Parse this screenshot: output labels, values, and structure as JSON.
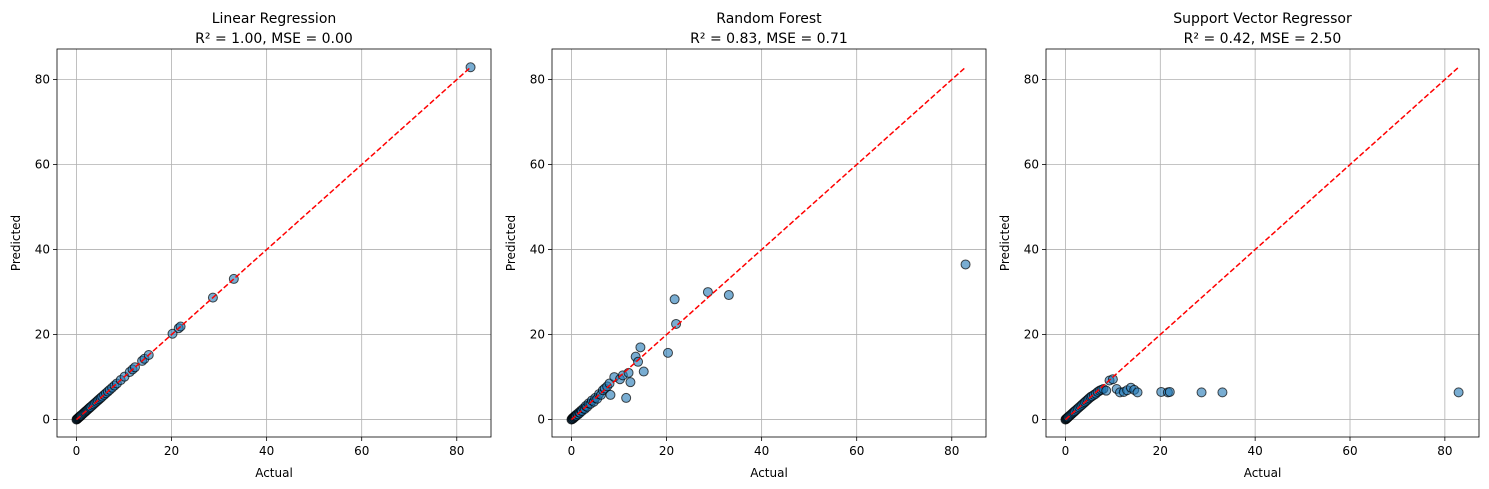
{
  "chart_data": [
    {
      "type": "scatter",
      "title_line1": "Linear Regression",
      "title_line2": "R² = 1.00, MSE = 0.00",
      "xlabel": "Actual",
      "ylabel": "Predicted",
      "xlim": [
        -4.1,
        87.2
      ],
      "ylim": [
        -4.1,
        87.2
      ],
      "xticks": [
        0,
        20,
        40,
        60,
        80
      ],
      "yticks": [
        0,
        20,
        40,
        60,
        80
      ],
      "grid": true,
      "reference_line": [
        [
          0,
          0
        ],
        [
          82.8,
          82.8
        ]
      ],
      "points": [
        [
          0,
          0
        ],
        [
          0.1,
          0.1
        ],
        [
          0.2,
          0.2
        ],
        [
          0.3,
          0.3
        ],
        [
          0.4,
          0.4
        ],
        [
          0.5,
          0.5
        ],
        [
          0.6,
          0.6
        ],
        [
          0.7,
          0.7
        ],
        [
          0.8,
          0.8
        ],
        [
          0.9,
          0.9
        ],
        [
          1.0,
          1.0
        ],
        [
          1.2,
          1.2
        ],
        [
          1.4,
          1.4
        ],
        [
          1.6,
          1.6
        ],
        [
          1.8,
          1.8
        ],
        [
          2.0,
          2.0
        ],
        [
          2.2,
          2.2
        ],
        [
          2.4,
          2.4
        ],
        [
          2.6,
          2.6
        ],
        [
          2.8,
          2.8
        ],
        [
          3.0,
          3.0
        ],
        [
          3.3,
          3.3
        ],
        [
          3.6,
          3.6
        ],
        [
          3.9,
          3.9
        ],
        [
          4.2,
          4.2
        ],
        [
          4.5,
          4.5
        ],
        [
          4.8,
          4.8
        ],
        [
          5.1,
          5.1
        ],
        [
          5.4,
          5.4
        ],
        [
          5.8,
          5.8
        ],
        [
          6.2,
          6.2
        ],
        [
          6.6,
          6.6
        ],
        [
          7.0,
          7.0
        ],
        [
          7.5,
          7.5
        ],
        [
          8.0,
          8.0
        ],
        [
          8.5,
          8.5
        ],
        [
          9.3,
          9.3
        ],
        [
          10.1,
          10.1
        ],
        [
          11.2,
          11.2
        ],
        [
          11.8,
          11.8
        ],
        [
          12.3,
          12.3
        ],
        [
          13.8,
          13.8
        ],
        [
          14.3,
          14.3
        ],
        [
          15.2,
          15.2
        ],
        [
          20.2,
          20.2
        ],
        [
          21.5,
          21.5
        ],
        [
          21.9,
          21.9
        ],
        [
          28.7,
          28.7
        ],
        [
          33.1,
          33.1
        ],
        [
          82.9,
          82.9
        ]
      ]
    },
    {
      "type": "scatter",
      "title_line1": "Random Forest",
      "title_line2": "R² = 0.83, MSE = 0.71",
      "xlabel": "Actual",
      "ylabel": "Predicted",
      "xlim": [
        -4.1,
        87.2
      ],
      "ylim": [
        -4.1,
        87.2
      ],
      "xticks": [
        0,
        20,
        40,
        60,
        80
      ],
      "yticks": [
        0,
        20,
        40,
        60,
        80
      ],
      "grid": true,
      "reference_line": [
        [
          0,
          0
        ],
        [
          82.8,
          82.8
        ]
      ],
      "points": [
        [
          0,
          0
        ],
        [
          0.1,
          0.1
        ],
        [
          0.2,
          0.3
        ],
        [
          0.3,
          0.2
        ],
        [
          0.4,
          0.5
        ],
        [
          0.5,
          0.4
        ],
        [
          0.6,
          0.6
        ],
        [
          0.7,
          0.8
        ],
        [
          0.8,
          0.7
        ],
        [
          0.9,
          1.0
        ],
        [
          1.0,
          0.9
        ],
        [
          1.2,
          1.3
        ],
        [
          1.4,
          1.2
        ],
        [
          1.6,
          1.7
        ],
        [
          1.8,
          1.6
        ],
        [
          2.0,
          2.1
        ],
        [
          2.2,
          2.0
        ],
        [
          2.5,
          2.6
        ],
        [
          2.8,
          2.5
        ],
        [
          3.0,
          3.2
        ],
        [
          3.3,
          3.0
        ],
        [
          3.6,
          3.8
        ],
        [
          4.0,
          3.7
        ],
        [
          4.3,
          4.5
        ],
        [
          4.7,
          4.2
        ],
        [
          5.0,
          5.1
        ],
        [
          5.4,
          4.9
        ],
        [
          5.8,
          6.0
        ],
        [
          6.2,
          5.8
        ],
        [
          6.6,
          6.9
        ],
        [
          7.0,
          7.3
        ],
        [
          7.5,
          7.8
        ],
        [
          8.0,
          8.5
        ],
        [
          8.2,
          5.8
        ],
        [
          9.0,
          10.0
        ],
        [
          10.2,
          9.5
        ],
        [
          10.8,
          10.4
        ],
        [
          11.5,
          5.1
        ],
        [
          12.0,
          11.0
        ],
        [
          12.4,
          8.8
        ],
        [
          13.5,
          14.8
        ],
        [
          14.0,
          13.6
        ],
        [
          14.5,
          17.0
        ],
        [
          15.2,
          11.3
        ],
        [
          20.3,
          15.7
        ],
        [
          21.7,
          28.3
        ],
        [
          22.0,
          22.5
        ],
        [
          28.7,
          30.0
        ],
        [
          33.1,
          29.3
        ],
        [
          82.9,
          36.5
        ]
      ]
    },
    {
      "type": "scatter",
      "title_line1": "Support Vector Regressor",
      "title_line2": "R² = 0.42, MSE = 2.50",
      "xlabel": "Actual",
      "ylabel": "Predicted",
      "xlim": [
        -4.1,
        87.2
      ],
      "ylim": [
        -4.1,
        87.2
      ],
      "xticks": [
        0,
        20,
        40,
        60,
        80
      ],
      "yticks": [
        0,
        20,
        40,
        60,
        80
      ],
      "grid": true,
      "reference_line": [
        [
          0,
          0
        ],
        [
          82.8,
          82.8
        ]
      ],
      "points": [
        [
          0,
          0
        ],
        [
          0.1,
          0.1
        ],
        [
          0.2,
          0.2
        ],
        [
          0.3,
          0.3
        ],
        [
          0.4,
          0.4
        ],
        [
          0.5,
          0.5
        ],
        [
          0.6,
          0.6
        ],
        [
          0.8,
          0.8
        ],
        [
          1.0,
          1.0
        ],
        [
          1.2,
          1.2
        ],
        [
          1.4,
          1.4
        ],
        [
          1.6,
          1.6
        ],
        [
          1.8,
          1.8
        ],
        [
          2.0,
          2.0
        ],
        [
          2.3,
          2.3
        ],
        [
          2.6,
          2.6
        ],
        [
          2.9,
          2.9
        ],
        [
          3.2,
          3.2
        ],
        [
          3.5,
          3.5
        ],
        [
          3.8,
          3.8
        ],
        [
          4.1,
          4.1
        ],
        [
          4.4,
          4.4
        ],
        [
          4.7,
          4.7
        ],
        [
          5.0,
          5.0
        ],
        [
          5.3,
          5.3
        ],
        [
          5.6,
          5.5
        ],
        [
          6.0,
          5.8
        ],
        [
          6.4,
          6.1
        ],
        [
          6.8,
          6.5
        ],
        [
          7.2,
          6.8
        ],
        [
          7.6,
          7.0
        ],
        [
          8.0,
          7.2
        ],
        [
          8.6,
          6.8
        ],
        [
          9.3,
          9.2
        ],
        [
          10.0,
          9.5
        ],
        [
          10.8,
          7.2
        ],
        [
          11.5,
          6.4
        ],
        [
          12.3,
          6.5
        ],
        [
          13.0,
          6.9
        ],
        [
          13.8,
          7.5
        ],
        [
          14.5,
          7.0
        ],
        [
          15.2,
          6.4
        ],
        [
          20.2,
          6.5
        ],
        [
          21.6,
          6.4
        ],
        [
          22.0,
          6.5
        ],
        [
          28.7,
          6.4
        ],
        [
          33.1,
          6.4
        ],
        [
          82.9,
          6.4
        ]
      ]
    }
  ]
}
